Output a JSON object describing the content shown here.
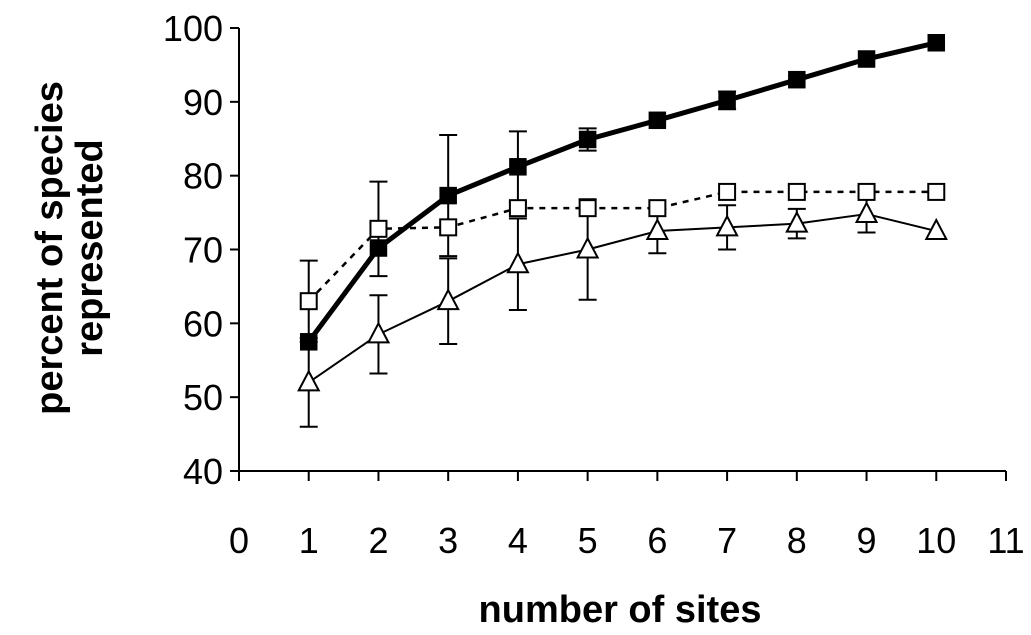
{
  "chart_data": {
    "type": "line",
    "title": "",
    "xlabel": "number of sites",
    "ylabel_lines": [
      "percent of species",
      "represented"
    ],
    "xlim": [
      0,
      11
    ],
    "ylim": [
      40,
      100
    ],
    "x_ticks": [
      0,
      1,
      2,
      3,
      4,
      5,
      6,
      7,
      8,
      9,
      10,
      11
    ],
    "y_ticks": [
      40,
      50,
      60,
      70,
      80,
      90,
      100
    ],
    "grid": false,
    "legend": "none",
    "x": [
      1,
      2,
      3,
      4,
      5,
      6,
      7,
      8,
      9,
      10
    ],
    "series": [
      {
        "marker": "filled-square",
        "line_style": "solid-thick",
        "color": "#000000",
        "values": [
          57.5,
          70.2,
          77.3,
          81.2,
          84.9,
          87.5,
          90.2,
          93.0,
          95.8,
          98.0
        ],
        "error": [
          null,
          null,
          8.2,
          4.8,
          1.5,
          null,
          1.2,
          null,
          null,
          null
        ]
      },
      {
        "marker": "open-square",
        "line_style": "dashed",
        "color": "#000000",
        "values": [
          63.0,
          72.8,
          73.0,
          75.6,
          75.6,
          75.6,
          77.8,
          77.8,
          77.8,
          77.8
        ],
        "error": [
          5.5,
          6.4,
          null,
          null,
          null,
          null,
          null,
          null,
          null,
          null
        ]
      },
      {
        "marker": "open-triangle",
        "line_style": "solid-thin",
        "color": "#000000",
        "values": [
          52.0,
          58.5,
          63.0,
          68.0,
          70.0,
          72.5,
          73.0,
          73.5,
          74.8,
          72.5
        ],
        "error": [
          6.0,
          5.3,
          5.8,
          6.2,
          6.8,
          3.0,
          3.0,
          2.0,
          2.5,
          null
        ]
      }
    ]
  }
}
